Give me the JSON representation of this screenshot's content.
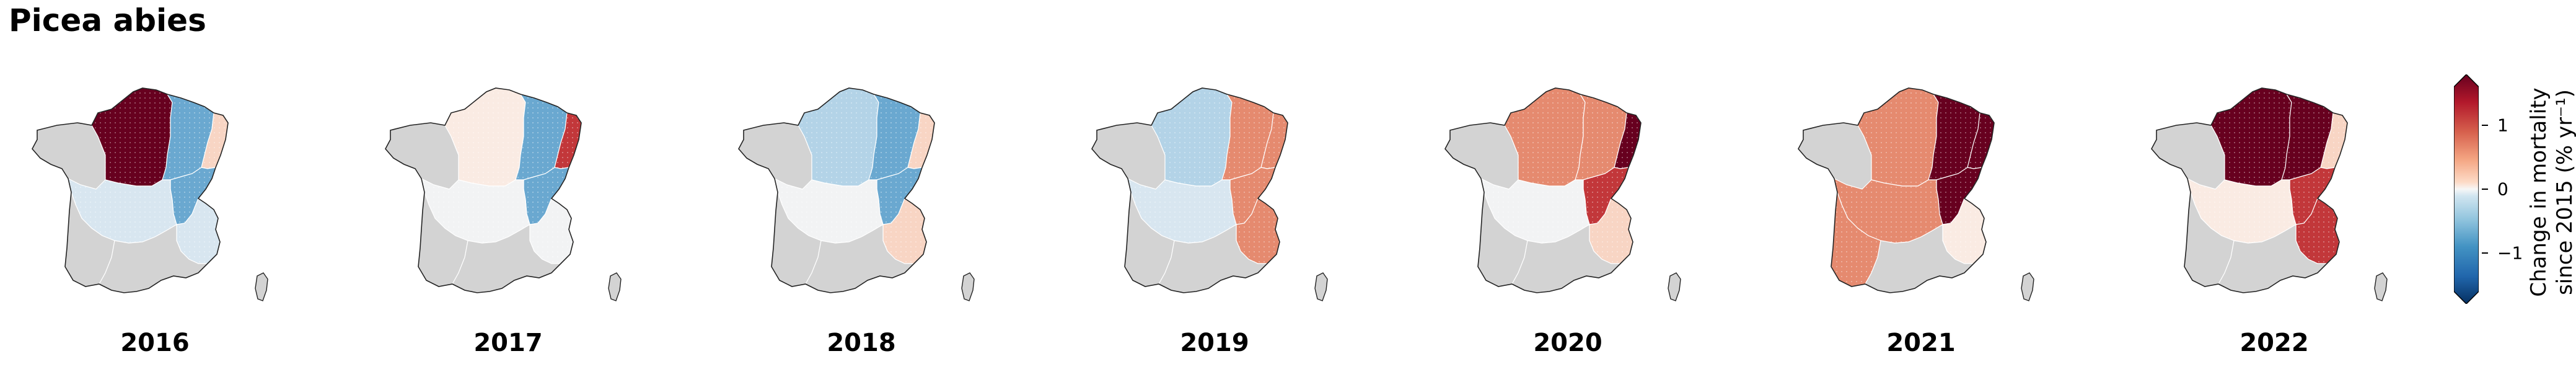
{
  "title": "Picea abies",
  "colorbar": {
    "label_line1": "Change in mortality",
    "label_line2": "since 2015 (% yr⁻¹)",
    "ticks": [
      "1",
      "0",
      "−1"
    ],
    "tick_values": [
      1,
      0,
      -1
    ],
    "range": [
      -1.6,
      1.6
    ],
    "extend": "both",
    "colormap": "RdBu_r"
  },
  "colors": {
    "no_data": "#d3d3d3",
    "dark_red": "#67001f",
    "red": "#c2373a",
    "salmon": "#e58a6f",
    "light_peach": "#f8d5c4",
    "very_light_peach": "#faebe3",
    "near_white": "#f2f3f4",
    "pale_blue": "#d8e6f0",
    "light_blue": "#b3d3e7",
    "mid_blue": "#6aa8d0",
    "dark_blue": "#053061"
  },
  "panels": [
    {
      "year": "2016",
      "regions": {
        "north": "dark_red",
        "northeast": "mid_blue",
        "alsace": "light_peach",
        "jura": "mid_blue",
        "center": "pale_blue",
        "alps": "pale_blue",
        "southwest": "no_data",
        "mediterranean": "no_data",
        "brittany": "no_data",
        "corsica": "no_data"
      }
    },
    {
      "year": "2017",
      "regions": {
        "north": "very_light_peach",
        "northeast": "mid_blue",
        "alsace": "red",
        "jura": "mid_blue",
        "center": "near_white",
        "alps": "near_white",
        "southwest": "no_data",
        "mediterranean": "no_data",
        "brittany": "no_data",
        "corsica": "no_data"
      }
    },
    {
      "year": "2018",
      "regions": {
        "north": "light_blue",
        "northeast": "mid_blue",
        "alsace": "light_peach",
        "jura": "mid_blue",
        "center": "near_white",
        "alps": "light_peach",
        "southwest": "no_data",
        "mediterranean": "no_data",
        "brittany": "no_data",
        "corsica": "no_data"
      }
    },
    {
      "year": "2019",
      "regions": {
        "north": "light_blue",
        "northeast": "salmon",
        "alsace": "salmon",
        "jura": "salmon",
        "center": "pale_blue",
        "alps": "salmon",
        "southwest": "no_data",
        "mediterranean": "no_data",
        "brittany": "no_data",
        "corsica": "no_data"
      }
    },
    {
      "year": "2020",
      "regions": {
        "north": "salmon",
        "northeast": "salmon",
        "alsace": "dark_red",
        "jura": "red",
        "center": "near_white",
        "alps": "light_peach",
        "southwest": "no_data",
        "mediterranean": "no_data",
        "brittany": "no_data",
        "corsica": "no_data"
      }
    },
    {
      "year": "2021",
      "regions": {
        "north": "salmon",
        "northeast": "dark_red",
        "alsace": "dark_red",
        "jura": "dark_red",
        "center": "salmon",
        "alps": "very_light_peach",
        "southwest": "salmon",
        "mediterranean": "no_data",
        "brittany": "no_data",
        "corsica": "no_data"
      }
    },
    {
      "year": "2022",
      "regions": {
        "north": "dark_red",
        "northeast": "dark_red",
        "alsace": "light_peach",
        "jura": "red",
        "center": "very_light_peach",
        "alps": "red",
        "southwest": "no_data",
        "mediterranean": "no_data",
        "brittany": "no_data",
        "corsica": "no_data"
      }
    }
  ]
}
